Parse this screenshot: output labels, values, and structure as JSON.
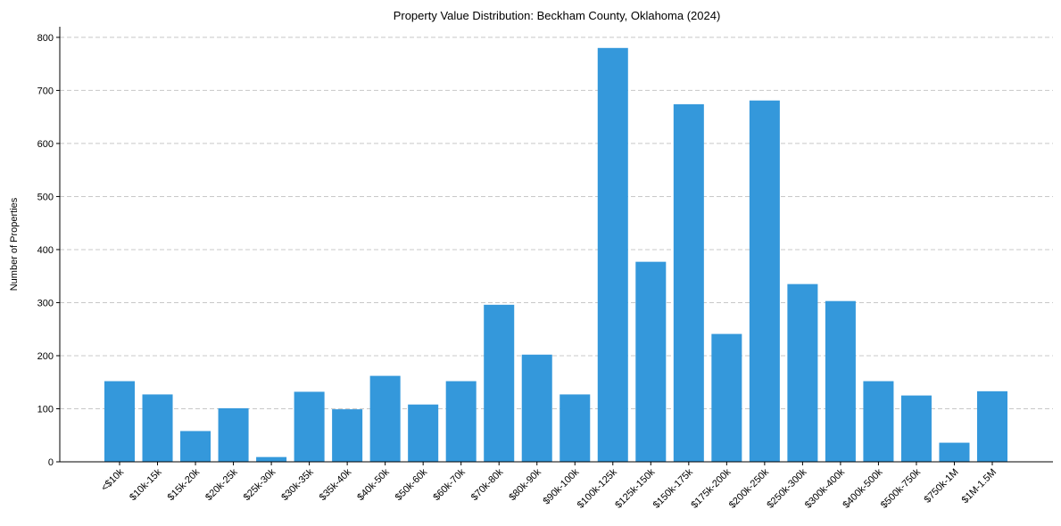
{
  "chart_data": {
    "type": "bar",
    "title": "Property Value Distribution: Beckham County, Oklahoma (2024)",
    "xlabel": "",
    "ylabel": "Number of Properties",
    "ylim": [
      0,
      820
    ],
    "yticks": [
      0,
      100,
      200,
      300,
      400,
      500,
      600,
      700,
      800
    ],
    "grid": "y-dashed",
    "categories": [
      "<$10k",
      "$10k-15k",
      "$15k-20k",
      "$20k-25k",
      "$25k-30k",
      "$30k-35k",
      "$35k-40k",
      "$40k-50k",
      "$50k-60k",
      "$60k-70k",
      "$70k-80k",
      "$80k-90k",
      "$90k-100k",
      "$100k-125k",
      "$125k-150k",
      "$150k-175k",
      "$175k-200k",
      "$200k-250k",
      "$250k-300k",
      "$300k-400k",
      "$400k-500k",
      "$500k-750k",
      "$750k-1M",
      "$1M-1.5M"
    ],
    "values": [
      152,
      127,
      58,
      101,
      9,
      132,
      99,
      162,
      108,
      152,
      296,
      202,
      127,
      780,
      377,
      674,
      241,
      681,
      335,
      303,
      152,
      125,
      36,
      133
    ],
    "bar_color": "#3498db"
  }
}
